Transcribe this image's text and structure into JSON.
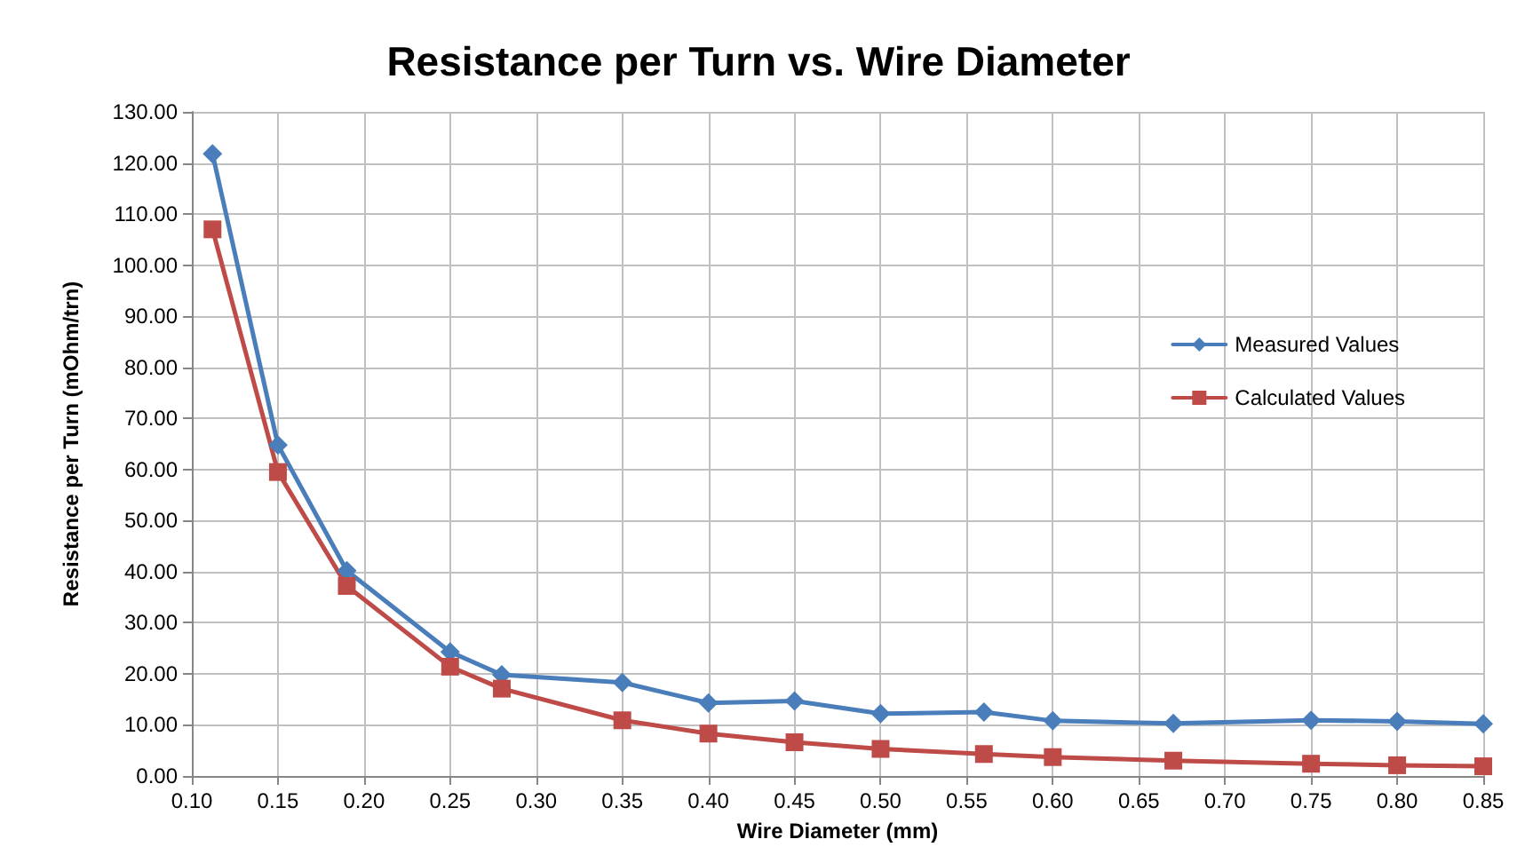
{
  "chart_data": {
    "type": "line",
    "title": "Resistance per Turn vs. Wire Diameter",
    "xlabel": "Wire Diameter (mm)",
    "ylabel": "Resistance per Turn (mOhm/trn)",
    "x": [
      0.112,
      0.15,
      0.19,
      0.25,
      0.28,
      0.35,
      0.4,
      0.45,
      0.5,
      0.56,
      0.6,
      0.67,
      0.75,
      0.8,
      0.85
    ],
    "series": [
      {
        "name": "Measured Values",
        "color": "#4a7ebb",
        "marker": "diamond",
        "values": [
          121.8,
          64.8,
          40.2,
          24.3,
          19.8,
          18.3,
          14.3,
          14.7,
          12.2,
          12.5,
          10.8,
          10.3,
          10.9,
          10.7,
          10.2
        ]
      },
      {
        "name": "Calculated Values",
        "color": "#be4b48",
        "marker": "square",
        "values": [
          107,
          59.5,
          37.2,
          21.4,
          17.1,
          10.9,
          8.3,
          6.6,
          5.3,
          4.3,
          3.7,
          3.0,
          2.4,
          2.1,
          1.9
        ]
      }
    ],
    "xlim": [
      0.1,
      0.85
    ],
    "xticks": [
      {
        "value": 0.1,
        "label": "0.10"
      },
      {
        "value": 0.15,
        "label": "0.15"
      },
      {
        "value": 0.2,
        "label": "0.20"
      },
      {
        "value": 0.25,
        "label": "0.25"
      },
      {
        "value": 0.3,
        "label": "0.30"
      },
      {
        "value": 0.35,
        "label": "0.35"
      },
      {
        "value": 0.4,
        "label": "0.40"
      },
      {
        "value": 0.45,
        "label": "0.45"
      },
      {
        "value": 0.5,
        "label": "0.50"
      },
      {
        "value": 0.55,
        "label": "0.55"
      },
      {
        "value": 0.6,
        "label": "0.60"
      },
      {
        "value": 0.65,
        "label": "0.65"
      },
      {
        "value": 0.7,
        "label": "0.70"
      },
      {
        "value": 0.75,
        "label": "0.75"
      },
      {
        "value": 0.8,
        "label": "0.80"
      },
      {
        "value": 0.85,
        "label": "0.85"
      }
    ],
    "ylim": [
      0,
      130
    ],
    "yticks": [
      {
        "value": 0,
        "label": "0.00"
      },
      {
        "value": 10,
        "label": "10.00"
      },
      {
        "value": 20,
        "label": "20.00"
      },
      {
        "value": 30,
        "label": "30.00"
      },
      {
        "value": 40,
        "label": "40.00"
      },
      {
        "value": 50,
        "label": "50.00"
      },
      {
        "value": 60,
        "label": "60.00"
      },
      {
        "value": 70,
        "label": "70.00"
      },
      {
        "value": 80,
        "label": "80.00"
      },
      {
        "value": 90,
        "label": "90.00"
      },
      {
        "value": 100,
        "label": "100.00"
      },
      {
        "value": 110,
        "label": "110.00"
      },
      {
        "value": 120,
        "label": "120.00"
      },
      {
        "value": 130,
        "label": "130.00"
      }
    ],
    "grid": true,
    "legend": "right",
    "line_style": "solid"
  }
}
